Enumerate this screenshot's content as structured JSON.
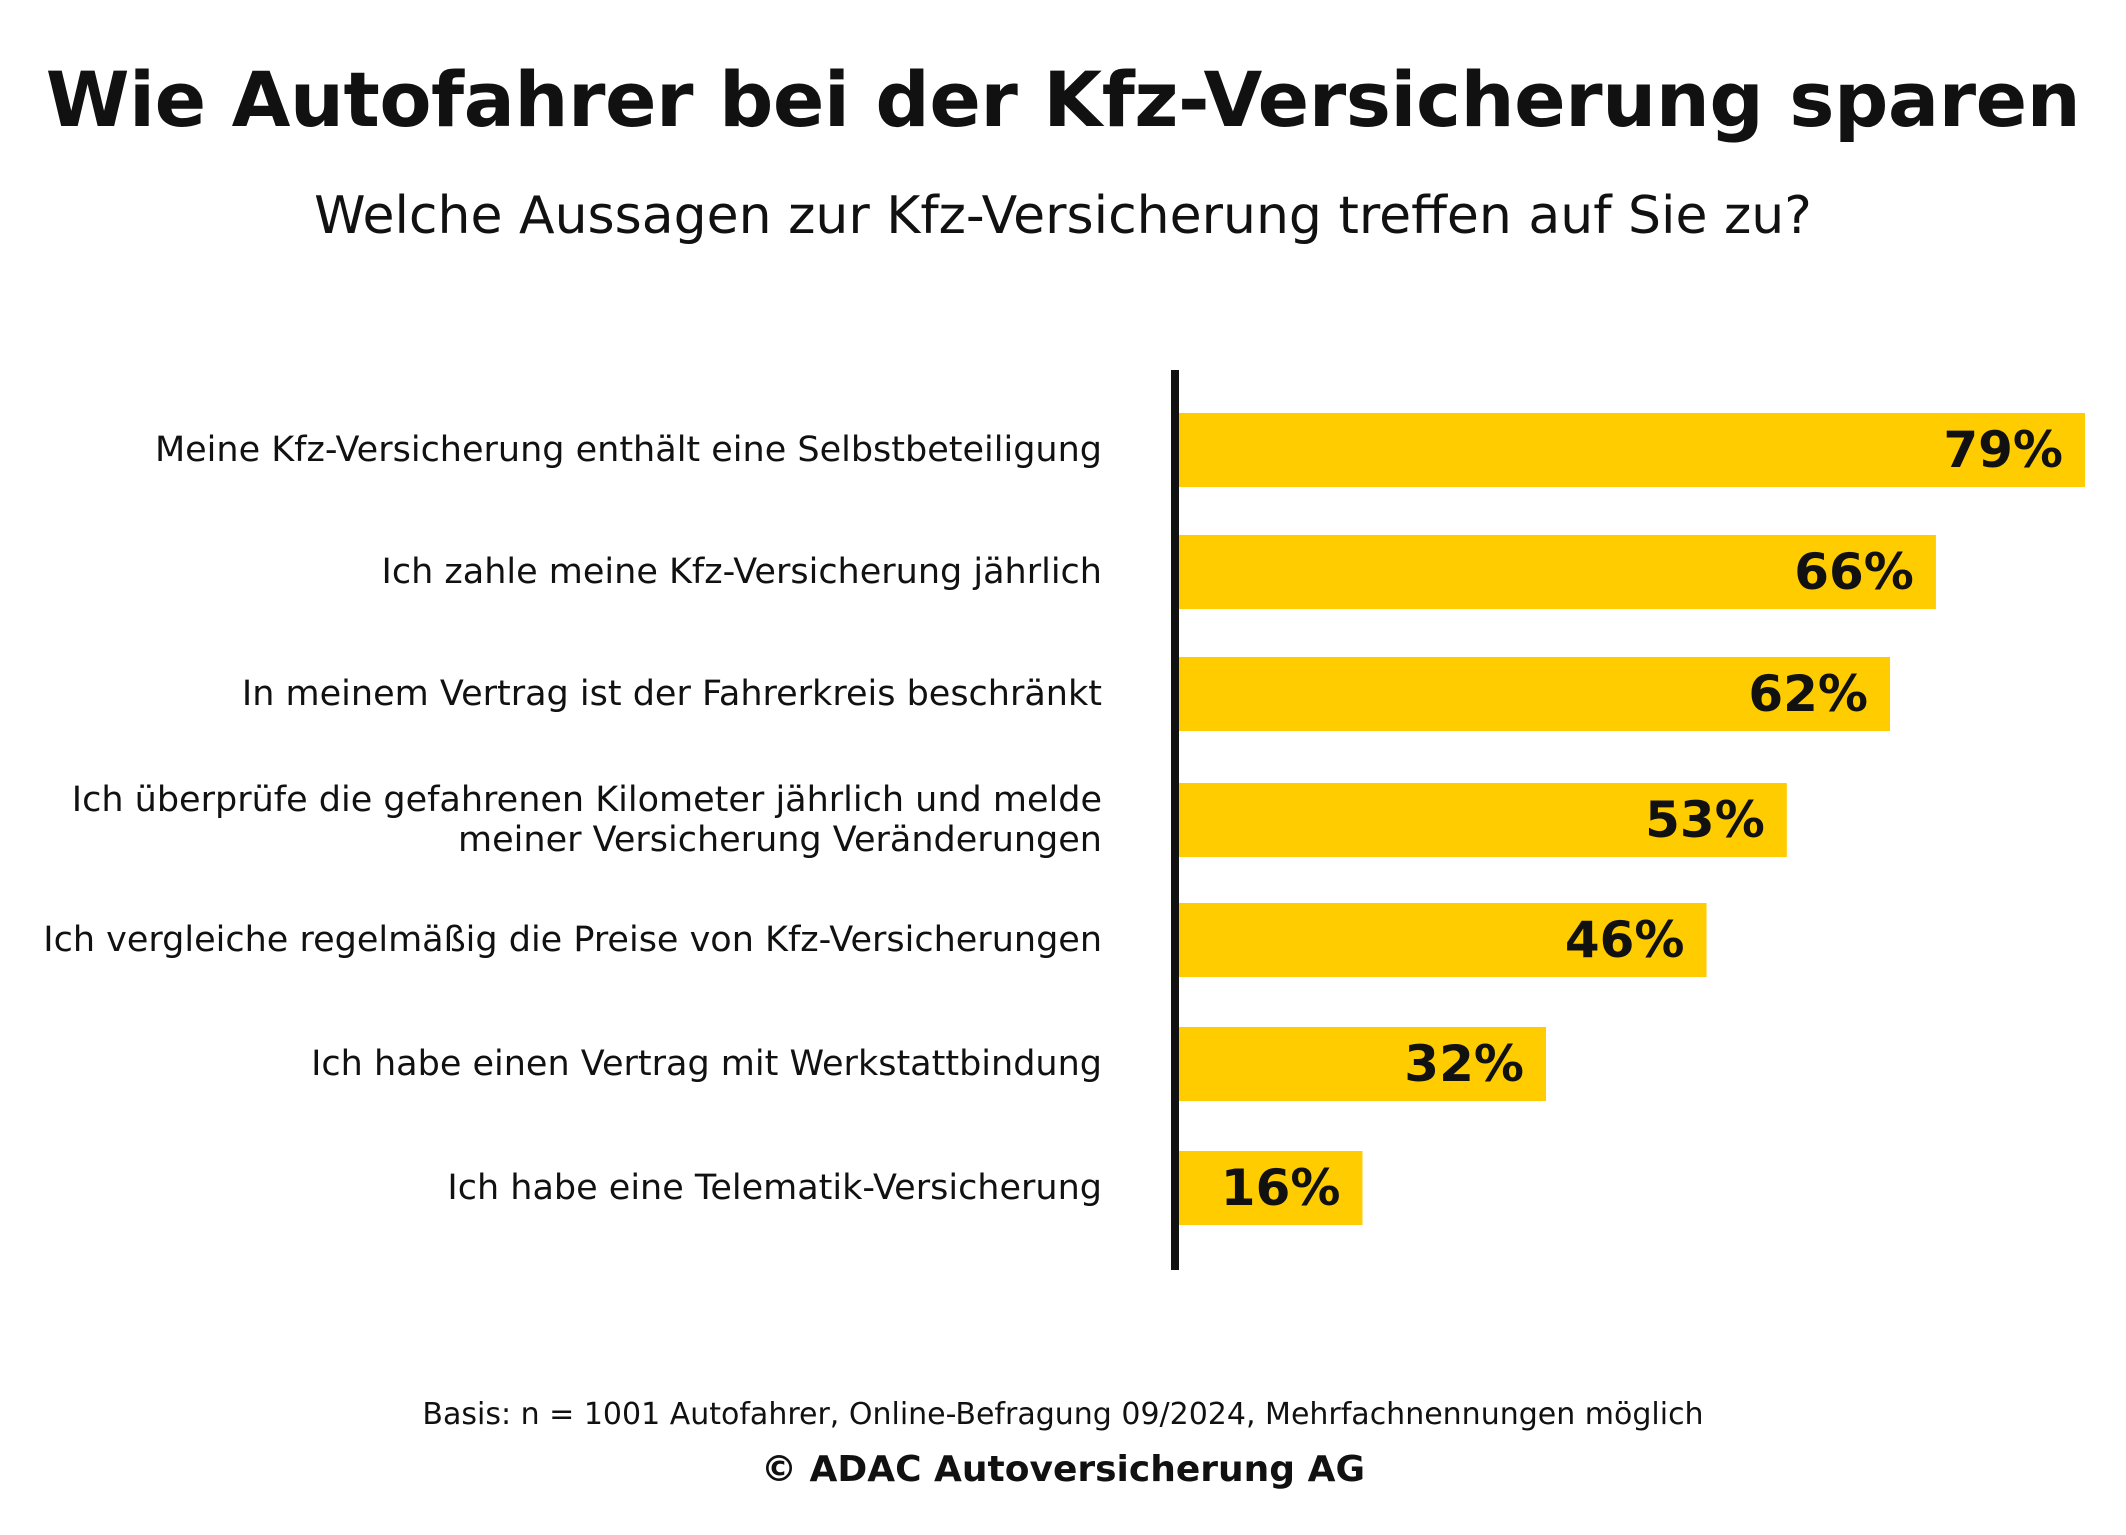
{
  "header": {
    "title": "Wie Autofahrer bei der Kfz-Versicherung sparen",
    "subtitle": "Welche Aussagen zur Kfz-Versicherung treffen auf Sie zu?"
  },
  "colors": {
    "bar": "#FFCC00",
    "axis": "#111111",
    "text": "#111111",
    "background": "#FFFFFF"
  },
  "chart_data": {
    "type": "bar",
    "orientation": "horizontal",
    "categories": [
      [
        "Meine Kfz-Versicherung enthält eine Selbstbeteiligung"
      ],
      [
        "Ich zahle meine Kfz-Versicherung jährlich"
      ],
      [
        "In meinem Vertrag ist der Fahrerkreis beschränkt"
      ],
      [
        "Ich überprüfe die gefahrenen Kilometer jährlich und melde",
        "meiner Versicherung Veränderungen"
      ],
      [
        "Ich vergleiche regelmäßig die Preise von Kfz-Versicherungen"
      ],
      [
        "Ich habe einen Vertrag mit Werkstattbindung"
      ],
      [
        "Ich habe eine Telematik-Versicherung"
      ]
    ],
    "values": [
      79,
      66,
      62,
      53,
      46,
      32,
      16
    ],
    "data_labels": [
      "79%",
      "66%",
      "62%",
      "53%",
      "46%",
      "32%",
      "16%"
    ],
    "unit": "%",
    "xlim": [
      0,
      80
    ],
    "grid": false,
    "legend": "none"
  },
  "footer": {
    "basis": "Basis: n = 1001 Autofahrer, Online-Befragung 09/2024, Mehrfachnennungen möglich",
    "copyright": "© ADAC Autoversicherung AG"
  }
}
